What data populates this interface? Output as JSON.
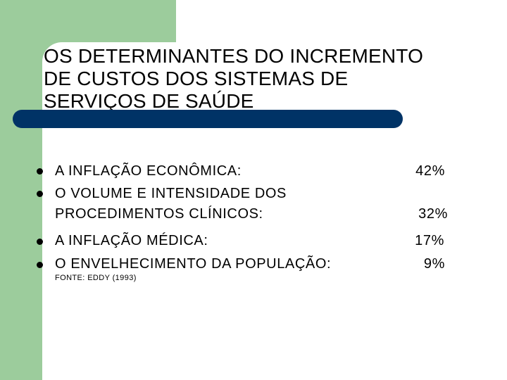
{
  "slide": {
    "title": "OS DETERMINANTES DO INCREMENTO DE CUSTOS DOS SISTEMAS DE SERVIÇOS DE SAÚDE",
    "items": [
      {
        "line1": "A INFLAÇÃO ECONÔMICA:",
        "value": "42%"
      },
      {
        "line1": "O VOLUME E INTENSIDADE DOS",
        "line2": "PROCEDIMENTOS CLÍNICOS:",
        "value": "32%"
      },
      {
        "line1": "A INFLAÇÃO MÉDICA:",
        "value": "17%"
      },
      {
        "line1": "O ENVELHECIMENTO DA POPULAÇÃO:",
        "value": "9%"
      }
    ],
    "source": "FONTE: EDDY (1993)"
  },
  "colors": {
    "accent_green": "#9ccc9c",
    "title_bar_navy": "#003366"
  }
}
